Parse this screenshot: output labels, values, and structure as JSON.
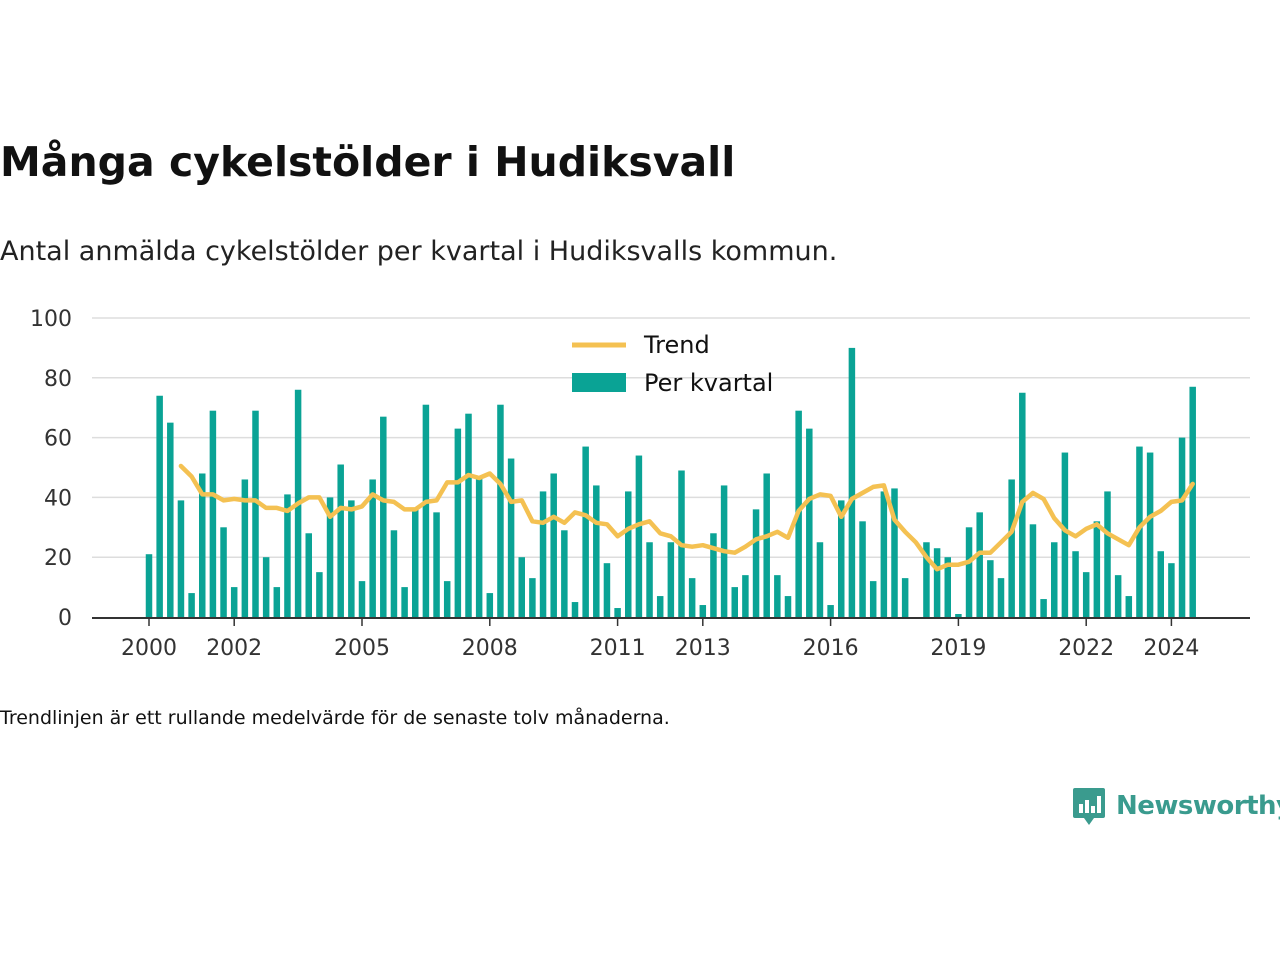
{
  "title": "Många cykelstölder i Hudiksvall",
  "subtitle": "Antal anmälda cykelstölder per kvartal i Hudiksvalls kommun.",
  "footnote": "Trendlinjen är ett rullande medelvärde för de senaste tolv månaderna.",
  "brand": {
    "name": "Newsworthy",
    "icon": "newsworthy-logo-icon"
  },
  "colors": {
    "bars": "#0aa395",
    "trend": "#f4c152",
    "grid": "#dddddd",
    "axis": "#333333",
    "brand": "#3a9b8e"
  },
  "chart_data": {
    "type": "bar",
    "title": "Många cykelstölder i Hudiksvall",
    "subtitle": "Antal anmälda cykelstölder per kvartal i Hudiksvalls kommun.",
    "ylim": [
      0,
      100
    ],
    "yticks": [
      "0",
      "20",
      "40",
      "60",
      "80",
      "100"
    ],
    "xticks": [
      {
        "label": "2000",
        "year": 2000
      },
      {
        "label": "2002",
        "year": 2002
      },
      {
        "label": "2005",
        "year": 2005
      },
      {
        "label": "2008",
        "year": 2008
      },
      {
        "label": "2011",
        "year": 2011
      },
      {
        "label": "2013",
        "year": 2013
      },
      {
        "label": "2016",
        "year": 2016
      },
      {
        "label": "2019",
        "year": 2019
      },
      {
        "label": "2022",
        "year": 2022
      },
      {
        "label": "2024",
        "year": 2024
      }
    ],
    "start_year": 2000,
    "grid": true,
    "legend": {
      "placement": "top-center",
      "entries": [
        "Trend",
        "Per kvartal"
      ]
    },
    "series": [
      {
        "name": "Per kvartal",
        "type": "bar",
        "values": [
          21,
          74,
          65,
          39,
          8,
          48,
          69,
          30,
          10,
          46,
          69,
          20,
          10,
          41,
          76,
          28,
          15,
          40,
          51,
          39,
          12,
          46,
          67,
          29,
          10,
          36,
          71,
          35,
          12,
          63,
          68,
          47,
          8,
          71,
          53,
          20,
          13,
          42,
          48,
          29,
          5,
          57,
          44,
          18,
          3,
          42,
          54,
          25,
          7,
          25,
          49,
          13,
          4,
          28,
          44,
          10,
          14,
          36,
          48,
          14,
          7,
          69,
          63,
          25,
          4,
          39,
          90,
          32,
          12,
          42,
          43,
          13,
          0,
          25,
          23,
          20,
          1,
          30,
          35,
          19,
          13,
          46,
          75,
          31,
          6,
          25,
          55,
          22,
          15,
          32,
          42,
          14,
          7,
          57,
          55,
          22,
          18,
          60,
          77
        ]
      },
      {
        "name": "Trend",
        "type": "line",
        "start_index": 3,
        "values": [
          50.5,
          47,
          41,
          41,
          39,
          39.5,
          39,
          39,
          36.5,
          36.5,
          35.5,
          38,
          40,
          40,
          33.5,
          36.5,
          36,
          37,
          41,
          39,
          38.5,
          36,
          36,
          38.5,
          39,
          45,
          45,
          47.5,
          46.5,
          48,
          44.5,
          38.5,
          39,
          32,
          31.5,
          33.5,
          31.5,
          35,
          34,
          31.5,
          31,
          27,
          29.5,
          31,
          32,
          28,
          27,
          24,
          23.5,
          24,
          23,
          22,
          21.5,
          23.5,
          26,
          27,
          28.5,
          26.5,
          35.5,
          39.5,
          41,
          40.5,
          33.5,
          39.5,
          41.5,
          43.5,
          44,
          32.5,
          28.5,
          25,
          20,
          16,
          17.5,
          17.5,
          18.5,
          21.5,
          21.5,
          25,
          28.5,
          38.5,
          41.5,
          39.5,
          33,
          29,
          27,
          29.5,
          31,
          28,
          26,
          24,
          30,
          33.5,
          35.5,
          38.5,
          39,
          44.5
        ]
      }
    ]
  }
}
